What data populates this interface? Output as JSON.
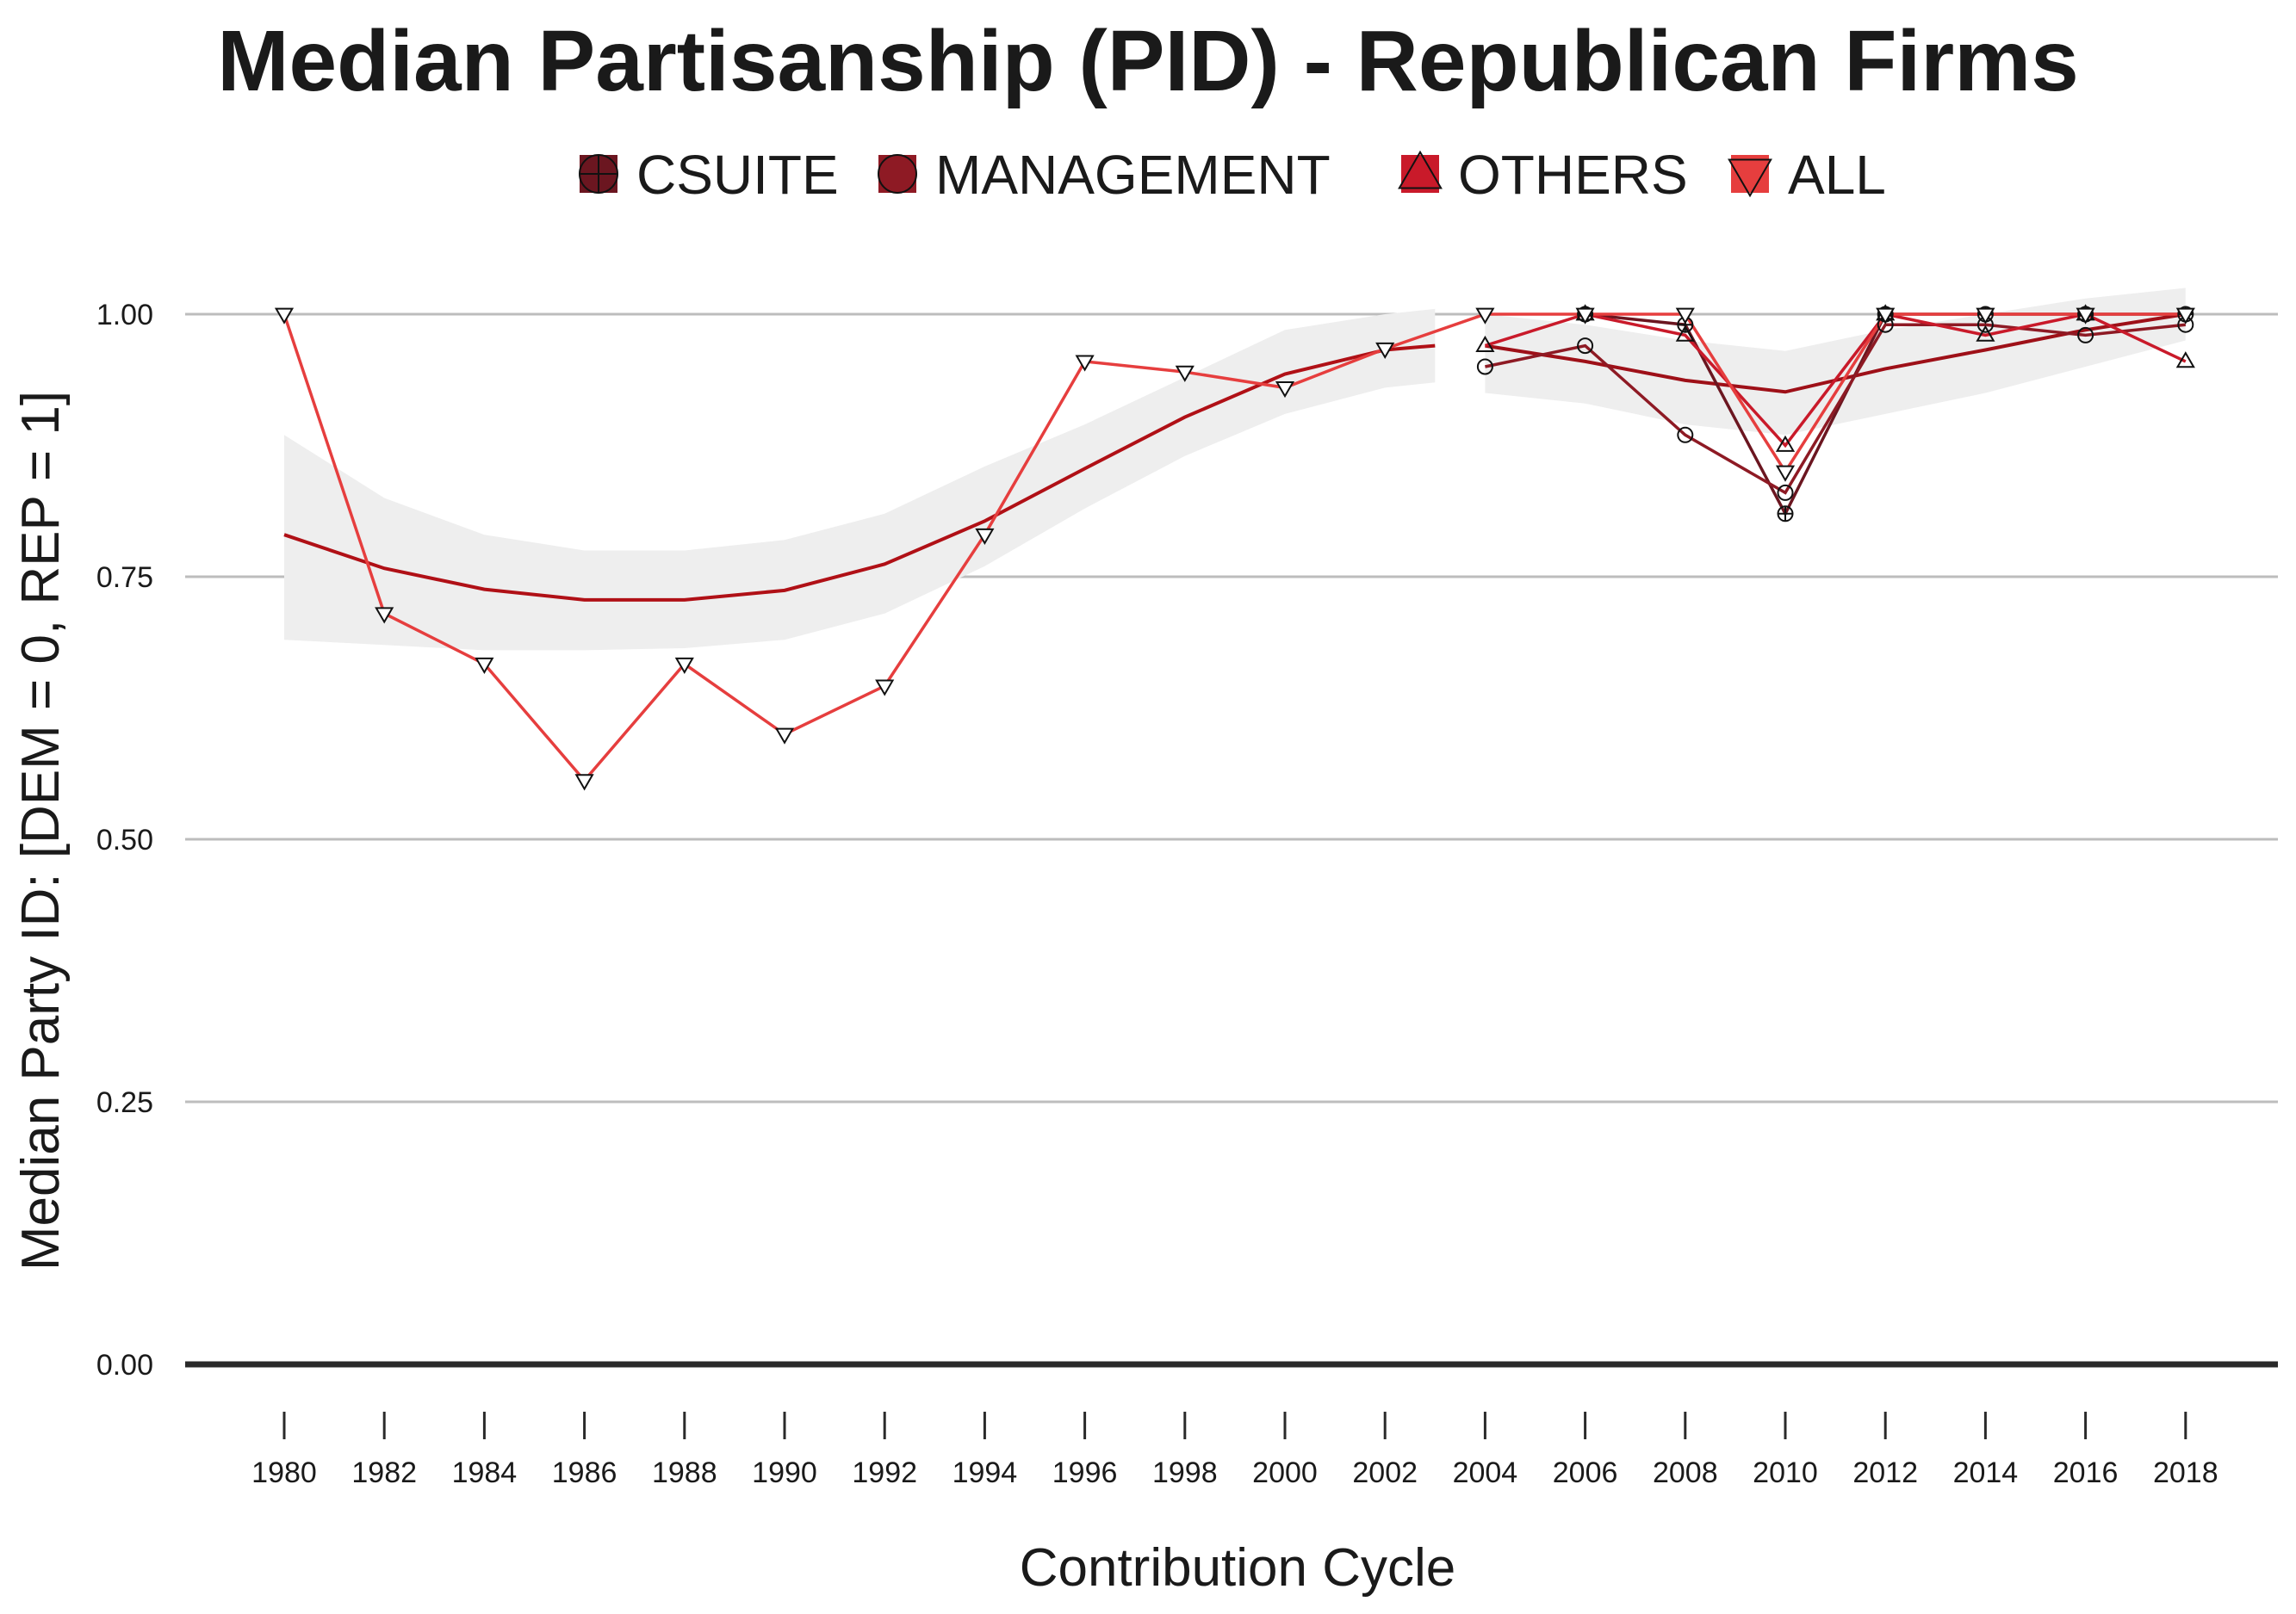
{
  "chart_data": {
    "type": "line",
    "title": "Median Partisanship (PID) - Republican Firms",
    "xlabel": "Contribution Cycle",
    "ylabel": "Median Party ID: [DEM = 0, REP = 1]",
    "x_ticks": [
      "1980",
      "1982",
      "1984",
      "1986",
      "1988",
      "1990",
      "1992",
      "1994",
      "1996",
      "1998",
      "2000",
      "2002",
      "2004",
      "2006",
      "2008",
      "2010",
      "2012",
      "2014",
      "2016",
      "2018"
    ],
    "y_ticks": [
      "0.00",
      "0.25",
      "0.50",
      "0.75",
      "1.00"
    ],
    "xlim": [
      1979,
      2020
    ],
    "ylim": [
      0,
      1.05
    ],
    "grid": "horizontal",
    "legend_position": "top",
    "series": [
      {
        "name": "CSUITE",
        "color": "#6b1620",
        "marker": "circle-plus",
        "x": [
          2006,
          2008,
          2010,
          2012,
          2014,
          2016,
          2018
        ],
        "y": [
          1.0,
          0.99,
          0.81,
          1.0,
          1.0,
          1.0,
          1.0
        ]
      },
      {
        "name": "MANAGEMENT",
        "color": "#8e1a24",
        "marker": "circle",
        "x": [
          2004,
          2006,
          2008,
          2010,
          2012,
          2014,
          2016,
          2018
        ],
        "y": [
          0.95,
          0.97,
          0.885,
          0.83,
          0.99,
          0.99,
          0.98,
          0.99
        ]
      },
      {
        "name": "OTHERS",
        "color": "#c91a2a",
        "marker": "triangle-up",
        "x": [
          2004,
          2006,
          2008,
          2010,
          2012,
          2014,
          2016,
          2018
        ],
        "y": [
          0.97,
          1.0,
          0.98,
          0.875,
          1.0,
          0.98,
          1.0,
          0.955
        ]
      },
      {
        "name": "ALL",
        "color": "#e63e3e",
        "marker": "triangle-down",
        "x": [
          1980,
          1982,
          1984,
          1986,
          1988,
          1990,
          1992,
          1994,
          1996,
          1998,
          2000,
          2002,
          2004,
          2006,
          2008,
          2010,
          2012,
          2014,
          2016,
          2018
        ],
        "y": [
          1.0,
          0.715,
          0.667,
          0.556,
          0.667,
          0.6,
          0.646,
          0.79,
          0.955,
          0.945,
          0.93,
          0.967,
          1.0,
          1.0,
          1.0,
          0.85,
          1.0,
          1.0,
          1.0,
          1.0
        ]
      }
    ],
    "smooth_early": {
      "color": "#b01016",
      "band_color": "#eeeeee",
      "x": [
        1980,
        1982,
        1984,
        1986,
        1988,
        1990,
        1992,
        1994,
        1996,
        1998,
        2000,
        2002,
        2003
      ],
      "y": [
        0.79,
        0.758,
        0.738,
        0.728,
        0.728,
        0.737,
        0.762,
        0.803,
        0.853,
        0.902,
        0.943,
        0.966,
        0.97
      ],
      "lower": [
        0.69,
        0.685,
        0.68,
        0.68,
        0.682,
        0.69,
        0.715,
        0.76,
        0.815,
        0.865,
        0.905,
        0.93,
        0.935
      ],
      "upper": [
        0.885,
        0.825,
        0.79,
        0.775,
        0.775,
        0.785,
        0.81,
        0.855,
        0.895,
        0.94,
        0.985,
        1.0,
        1.005
      ]
    },
    "smooth_late": {
      "color": "#9e1018",
      "band_color": "#eeeeee",
      "x": [
        2004,
        2006,
        2008,
        2010,
        2012,
        2014,
        2016,
        2018
      ],
      "y": [
        0.97,
        0.955,
        0.937,
        0.926,
        0.948,
        0.966,
        0.985,
        1.0
      ],
      "lower": [
        0.925,
        0.915,
        0.895,
        0.885,
        0.905,
        0.925,
        0.95,
        0.975
      ],
      "upper": [
        1.0,
        0.99,
        0.975,
        0.965,
        0.985,
        1.0,
        1.015,
        1.025
      ]
    }
  }
}
